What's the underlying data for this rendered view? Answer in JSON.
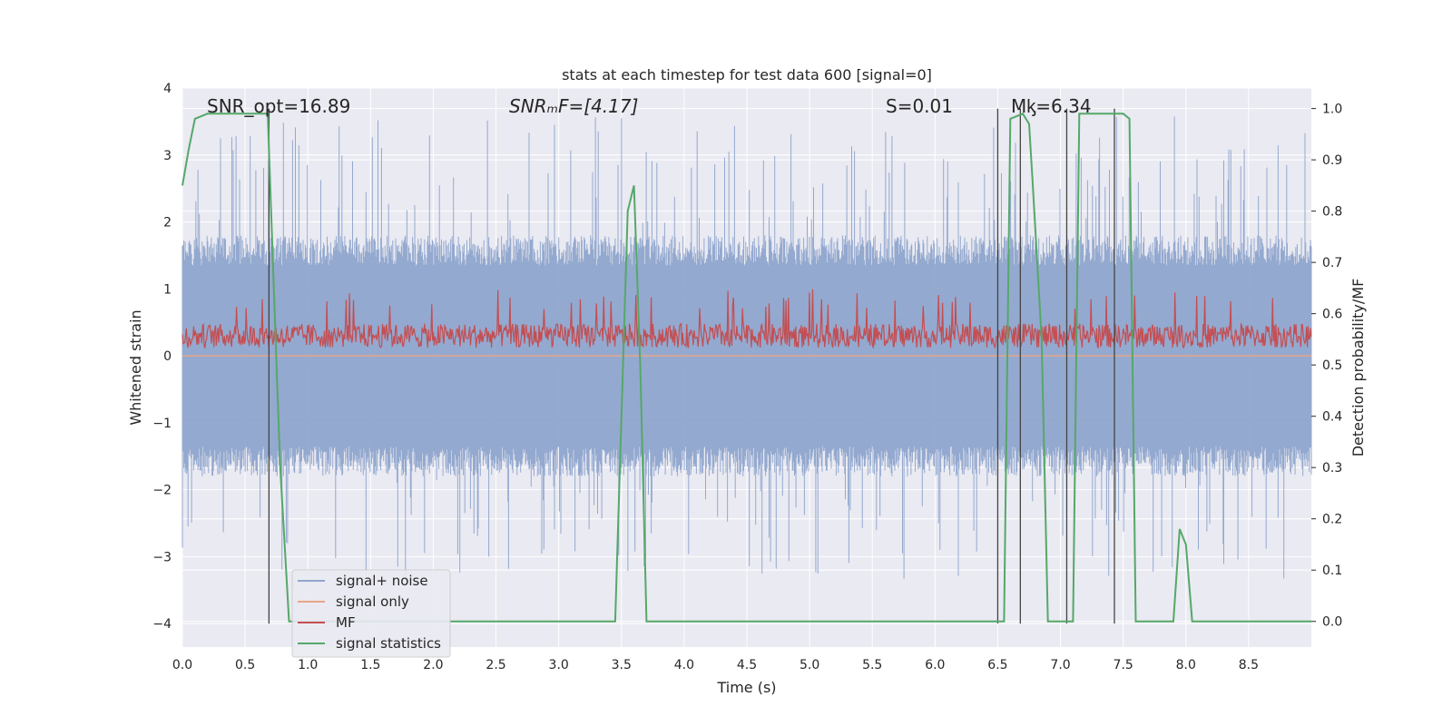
{
  "chart_data": {
    "type": "line",
    "title": "stats at each timestep for test data 600 [signal=0]",
    "xlabel": "Time (s)",
    "ylabel_left": "Whitened strain",
    "ylabel_right": "Detection probability/MF",
    "xlim": [
      0.0,
      9.0
    ],
    "ylim_left": [
      -4.35,
      4.0
    ],
    "ylim_right": [
      -0.05,
      1.04
    ],
    "x_ticks": [
      "0.0",
      "0.5",
      "1.0",
      "1.5",
      "2.0",
      "2.5",
      "3.0",
      "3.5",
      "4.0",
      "4.5",
      "5.0",
      "5.5",
      "6.0",
      "6.5",
      "7.0",
      "7.5",
      "8.0",
      "8.5"
    ],
    "y_left_ticks": [
      "4",
      "3",
      "2",
      "1",
      "0",
      "−1",
      "−2",
      "−3",
      "−4"
    ],
    "y_right_ticks": [
      "1.0",
      "0.9",
      "0.8",
      "0.7",
      "0.6",
      "0.5",
      "0.4",
      "0.3",
      "0.2",
      "0.1",
      "0.0"
    ],
    "grid": true,
    "legend_position": "lower-left",
    "annotations": [
      {
        "id": "snr_opt",
        "text": "SNR_opt=16.89"
      },
      {
        "id": "snr_mf",
        "text": "SNRₘF=[4.17]"
      },
      {
        "id": "s",
        "text": "S=0.01"
      },
      {
        "id": "mc",
        "text": "Mᶄ=6.34"
      }
    ],
    "series": [
      {
        "name": "signal+ noise",
        "color": "#8fa5cc",
        "style": "noise band",
        "typical_range": [
          -1.8,
          1.8
        ],
        "peak_range": [
          -3.35,
          3.6
        ]
      },
      {
        "name": "signal only",
        "color": "#e8a588",
        "values_constant": 0.0
      },
      {
        "name": "MF",
        "color": "#c44e52",
        "typical_range": [
          0.0,
          0.6
        ],
        "peak": 1.0
      },
      {
        "name": "signal statistics",
        "color": "#55a868",
        "x": [
          0.0,
          0.05,
          0.1,
          0.2,
          0.3,
          0.6,
          0.68,
          0.75,
          0.78,
          0.85,
          3.35,
          3.45,
          3.55,
          3.6,
          3.65,
          3.7,
          6.3,
          6.45,
          6.5,
          6.55,
          6.6,
          6.7,
          6.75,
          6.78,
          6.85,
          6.9,
          7.0,
          7.05,
          7.1,
          7.15,
          7.4,
          7.5,
          7.55,
          7.6,
          7.8,
          7.85,
          7.9,
          7.95,
          8.0,
          8.05,
          8.1,
          8.2,
          9.0
        ],
        "values": [
          0.85,
          0.92,
          0.98,
          0.99,
          0.99,
          0.99,
          0.99,
          0.5,
          0.3,
          0.0,
          0.0,
          0.0,
          0.8,
          0.85,
          0.5,
          0.0,
          0.0,
          0.0,
          0.0,
          0.0,
          0.98,
          0.99,
          0.97,
          0.85,
          0.55,
          0.0,
          0.0,
          0.0,
          0.0,
          0.99,
          0.99,
          0.99,
          0.98,
          0.0,
          0.0,
          0.0,
          0.0,
          0.18,
          0.15,
          0.0,
          0.0,
          0.0,
          0.0
        ]
      },
      {
        "name": "signal statistics markers",
        "type": "vlines",
        "x": [
          0.69,
          6.5,
          6.68,
          7.05,
          7.43
        ]
      }
    ]
  },
  "legend": {
    "items": [
      {
        "label": "signal+ noise",
        "color": "#8fa5cc"
      },
      {
        "label": "signal only",
        "color": "#e8a588"
      },
      {
        "label": "MF",
        "color": "#c44e52"
      },
      {
        "label": "signal statistics",
        "color": "#55a868"
      }
    ]
  },
  "colors": {
    "background": "#eaeaf2",
    "grid": "#ffffff",
    "text": "#262626",
    "vline": "#444444"
  }
}
